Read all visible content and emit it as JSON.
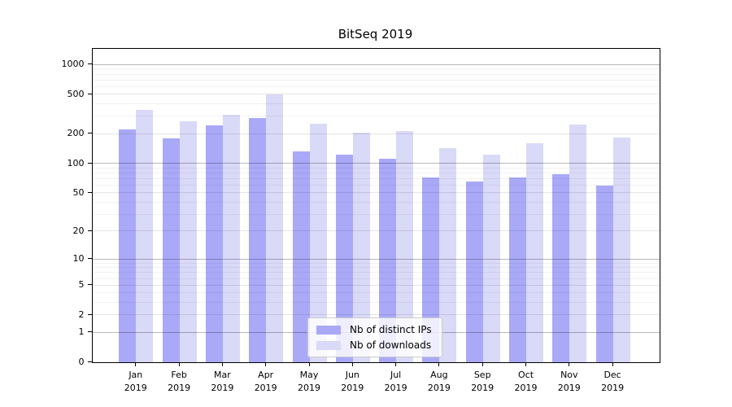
{
  "chart_data": {
    "type": "bar",
    "title": "BitSeq 2019",
    "categories": [
      "Jan",
      "Feb",
      "Mar",
      "Apr",
      "May",
      "Jun",
      "Jul",
      "Aug",
      "Sep",
      "Oct",
      "Nov",
      "Dec"
    ],
    "year": "2019",
    "series": [
      {
        "name": "Nb of distinct IPs",
        "color": "#a9a9f8",
        "values": [
          220,
          178,
          245,
          288,
          132,
          122,
          111,
          72,
          65,
          72,
          78,
          59
        ]
      },
      {
        "name": "Nb of downloads",
        "color": "#d9d9f8",
        "values": [
          347,
          266,
          311,
          502,
          254,
          205,
          213,
          142,
          123,
          160,
          250,
          184
        ]
      }
    ],
    "y_scale": "symlog (position = log(1+value))",
    "y_ticks": [
      1000,
      500,
      200,
      100,
      50,
      20,
      10,
      5,
      2,
      1,
      0
    ],
    "y_minor_ticks": [
      900,
      800,
      700,
      600,
      400,
      300,
      90,
      80,
      70,
      60,
      40,
      30,
      9,
      8,
      7,
      6,
      4,
      3
    ],
    "ylim": [
      0,
      1430
    ],
    "grid": "on, drawn above bars; decade lines darker",
    "legend_position": "lower center",
    "frame_color": "#000000",
    "grid_decade_color": "#b8b8b8",
    "grid_minor_color": "#ededed"
  }
}
